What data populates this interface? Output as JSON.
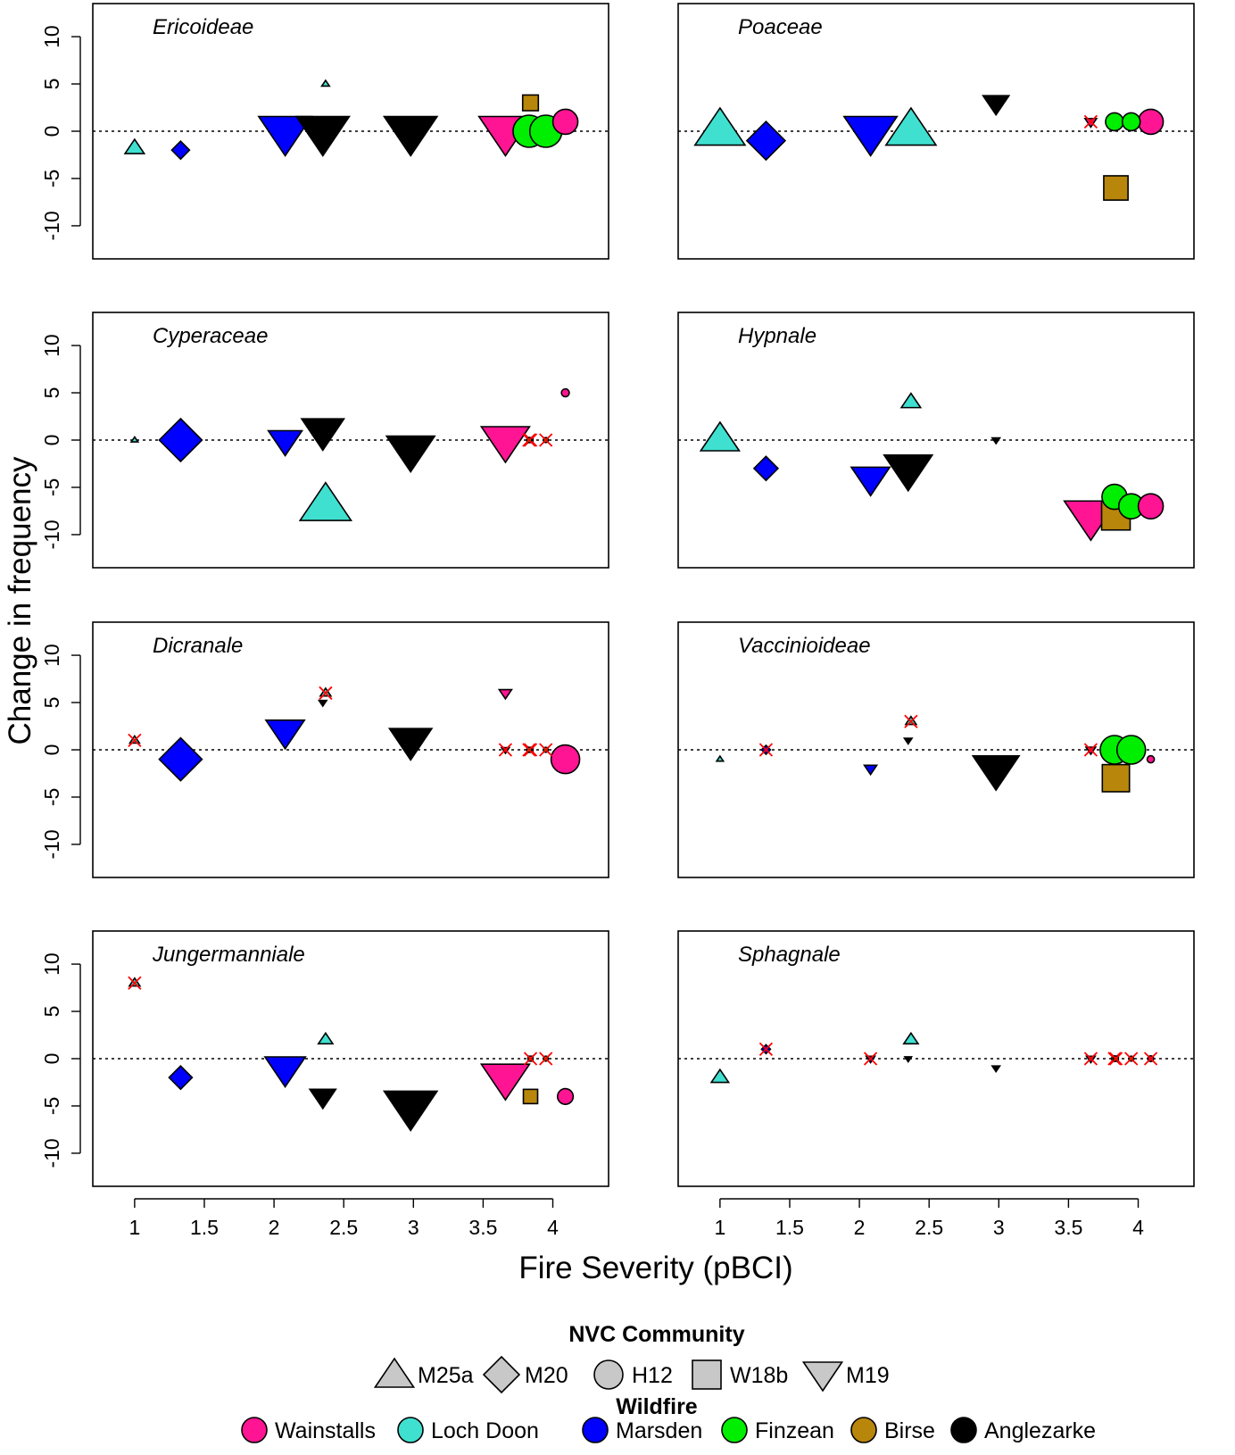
{
  "chart_data": {
    "type": "scatter",
    "xlabel": "Fire Severity (pBCI)",
    "ylabel": "Change in frequency",
    "xlim": [
      0.7,
      4.4
    ],
    "ylim": [
      -13.5,
      13.5
    ],
    "xticks": [
      "1",
      "1.5",
      "2",
      "2.5",
      "3",
      "3.5",
      "4"
    ],
    "xtick_values": [
      1,
      1.5,
      2,
      2.5,
      3,
      3.5,
      4
    ],
    "yticks": [
      "10",
      "5",
      "0",
      "-5",
      "-10"
    ],
    "ytick_values": [
      10,
      5,
      0,
      -5,
      -10
    ],
    "reference_line": 0,
    "legend": {
      "placement": "bottom",
      "community_title": "NVC Community",
      "community": [
        {
          "label": "M25a",
          "shape": "triangle-up"
        },
        {
          "label": "M20",
          "shape": "diamond"
        },
        {
          "label": "H12",
          "shape": "circle"
        },
        {
          "label": "W18b",
          "shape": "square"
        },
        {
          "label": "M19",
          "shape": "triangle-down"
        }
      ],
      "wildfire_title": "Wildfire",
      "wildfire": [
        {
          "label": "Wainstalls",
          "color": "#ff1493"
        },
        {
          "label": "Loch Doon",
          "color": "#40e0d0"
        },
        {
          "label": "Marsden",
          "color": "#0000ff"
        },
        {
          "label": "Finzean",
          "color": "#00ee00"
        },
        {
          "label": "Birse",
          "color": "#b8860b"
        },
        {
          "label": "Anglezarke",
          "color": "#000000"
        }
      ]
    },
    "panels": [
      {
        "title": "Ericoideae",
        "points": [
          {
            "x": 1.0,
            "y": -1.8,
            "shape": "triangle-up",
            "color": "#40e0d0",
            "size": 2
          },
          {
            "x": 1.33,
            "y": -2.0,
            "shape": "diamond",
            "color": "#0000ff",
            "size": 2
          },
          {
            "x": 2.37,
            "y": 5.0,
            "shape": "triangle-up",
            "color": "#40e0d0",
            "size": 0.8
          },
          {
            "x": 2.08,
            "y": 0.0,
            "shape": "triangle-down",
            "color": "#0000ff",
            "size": 5.5
          },
          {
            "x": 2.35,
            "y": 0.0,
            "shape": "triangle-down",
            "color": "#000000",
            "size": 5.5
          },
          {
            "x": 2.98,
            "y": 0.0,
            "shape": "triangle-down",
            "color": "#000000",
            "size": 5.5
          },
          {
            "x": 3.83,
            "y": 0.0,
            "shape": "circle",
            "color": "#00ee00",
            "size": 4.5
          },
          {
            "x": 3.95,
            "y": 0.0,
            "shape": "circle",
            "color": "#00ee00",
            "size": 4.5
          },
          {
            "x": 3.66,
            "y": 0.0,
            "shape": "triangle-down",
            "color": "#ff1493",
            "size": 5.5
          },
          {
            "x": 3.84,
            "y": 3.0,
            "shape": "square",
            "color": "#b8860b",
            "size": 2.2
          },
          {
            "x": 4.09,
            "y": 1.0,
            "shape": "circle",
            "color": "#ff1493",
            "size": 3.5
          }
        ]
      },
      {
        "title": "Poaceae",
        "points": [
          {
            "x": 1.0,
            "y": 0.0,
            "shape": "triangle-up",
            "color": "#40e0d0",
            "size": 5.2
          },
          {
            "x": 1.33,
            "y": -1.0,
            "shape": "diamond",
            "color": "#0000ff",
            "size": 4.3
          },
          {
            "x": 2.08,
            "y": 0.0,
            "shape": "triangle-down",
            "color": "#0000ff",
            "size": 5.5
          },
          {
            "x": 2.37,
            "y": 0.0,
            "shape": "triangle-up",
            "color": "#40e0d0",
            "size": 5.2
          },
          {
            "x": 2.98,
            "y": 3.0,
            "shape": "triangle-down",
            "color": "#000000",
            "size": 2.7
          },
          {
            "x": 3.66,
            "y": 1.0,
            "shape": "triangle-down",
            "color": "#ff1493",
            "size": 1.2,
            "crossed": true
          },
          {
            "x": 3.83,
            "y": 1.0,
            "shape": "circle",
            "color": "#00ee00",
            "size": 2.5
          },
          {
            "x": 3.95,
            "y": 1.0,
            "shape": "circle",
            "color": "#00ee00",
            "size": 2.5
          },
          {
            "x": 4.09,
            "y": 1.0,
            "shape": "circle",
            "color": "#ff1493",
            "size": 3.5
          },
          {
            "x": 3.84,
            "y": -6.0,
            "shape": "square",
            "color": "#b8860b",
            "size": 3.4
          }
        ]
      },
      {
        "title": "Cyperaceae",
        "points": [
          {
            "x": 1.0,
            "y": 0.0,
            "shape": "triangle-up",
            "color": "#40e0d0",
            "size": 0.7
          },
          {
            "x": 1.33,
            "y": 0.0,
            "shape": "diamond",
            "color": "#0000ff",
            "size": 4.8
          },
          {
            "x": 2.08,
            "y": 0.0,
            "shape": "triangle-down",
            "color": "#0000ff",
            "size": 3.5
          },
          {
            "x": 2.35,
            "y": 1.0,
            "shape": "triangle-down",
            "color": "#000000",
            "size": 4.4
          },
          {
            "x": 2.37,
            "y": -7.0,
            "shape": "triangle-up",
            "color": "#40e0d0",
            "size": 5.3
          },
          {
            "x": 2.98,
            "y": -1.0,
            "shape": "triangle-down",
            "color": "#000000",
            "size": 5.0
          },
          {
            "x": 3.66,
            "y": 0.0,
            "shape": "triangle-down",
            "color": "#ff1493",
            "size": 5.0
          },
          {
            "x": 3.84,
            "y": 0.0,
            "shape": "square",
            "color": "#b8860b",
            "size": 0.7,
            "crossed": true
          },
          {
            "x": 3.83,
            "y": 0.0,
            "shape": "circle",
            "color": "#00ee00",
            "size": 0.7,
            "crossed": true
          },
          {
            "x": 3.95,
            "y": 0.0,
            "shape": "circle",
            "color": "#00ee00",
            "size": 0.7,
            "crossed": true
          },
          {
            "x": 4.09,
            "y": 5.0,
            "shape": "circle",
            "color": "#ff1493",
            "size": 1.1
          }
        ]
      },
      {
        "title": "Hypnale",
        "points": [
          {
            "x": 1.0,
            "y": 0.0,
            "shape": "triangle-up",
            "color": "#40e0d0",
            "size": 4.0
          },
          {
            "x": 1.33,
            "y": -3.0,
            "shape": "diamond",
            "color": "#0000ff",
            "size": 2.7
          },
          {
            "x": 2.37,
            "y": 4.0,
            "shape": "triangle-up",
            "color": "#40e0d0",
            "size": 2.0
          },
          {
            "x": 2.08,
            "y": -4.0,
            "shape": "triangle-down",
            "color": "#0000ff",
            "size": 4.0
          },
          {
            "x": 2.35,
            "y": -3.0,
            "shape": "triangle-down",
            "color": "#000000",
            "size": 5.0
          },
          {
            "x": 2.98,
            "y": 0.0,
            "shape": "triangle-down",
            "color": "#000000",
            "size": 0.8
          },
          {
            "x": 3.83,
            "y": -6.0,
            "shape": "circle",
            "color": "#00ee00",
            "size": 3.5
          },
          {
            "x": 3.95,
            "y": -7.0,
            "shape": "circle",
            "color": "#00ee00",
            "size": 3.5
          },
          {
            "x": 4.09,
            "y": -7.0,
            "shape": "circle",
            "color": "#ff1493",
            "size": 3.5
          },
          {
            "x": 3.66,
            "y": -8.0,
            "shape": "triangle-down",
            "color": "#ff1493",
            "size": 5.5
          },
          {
            "x": 3.84,
            "y": -8.0,
            "shape": "square",
            "color": "#b8860b",
            "size": 4.0
          }
        ]
      },
      {
        "title": "Dicranale",
        "points": [
          {
            "x": 1.0,
            "y": 1.0,
            "shape": "triangle-up",
            "color": "#40e0d0",
            "size": 1.0,
            "crossed": true
          },
          {
            "x": 1.33,
            "y": -1.0,
            "shape": "diamond",
            "color": "#0000ff",
            "size": 4.8
          },
          {
            "x": 2.08,
            "y": 2.0,
            "shape": "triangle-down",
            "color": "#0000ff",
            "size": 4.0
          },
          {
            "x": 2.37,
            "y": 6.0,
            "shape": "triangle-up",
            "color": "#40e0d0",
            "size": 1.1,
            "crossed": true
          },
          {
            "x": 2.35,
            "y": 5.0,
            "shape": "triangle-down",
            "color": "#000000",
            "size": 0.8
          },
          {
            "x": 2.98,
            "y": 1.0,
            "shape": "triangle-down",
            "color": "#000000",
            "size": 4.4
          },
          {
            "x": 3.66,
            "y": 6.0,
            "shape": "triangle-down",
            "color": "#ff1493",
            "size": 1.3
          },
          {
            "x": 3.66,
            "y": 0.0,
            "shape": "triangle-down",
            "color": "#ff1493",
            "size": 0.8,
            "crossed": true
          },
          {
            "x": 3.84,
            "y": 0.0,
            "shape": "square",
            "color": "#b8860b",
            "size": 0.7,
            "crossed": true
          },
          {
            "x": 3.83,
            "y": 0.0,
            "shape": "circle",
            "color": "#00ee00",
            "size": 0.7,
            "crossed": true
          },
          {
            "x": 3.95,
            "y": 0.0,
            "shape": "circle",
            "color": "#00ee00",
            "size": 0.7,
            "crossed": true
          },
          {
            "x": 4.09,
            "y": -1.0,
            "shape": "circle",
            "color": "#ff1493",
            "size": 4.0
          }
        ]
      },
      {
        "title": "Vaccinioideae",
        "points": [
          {
            "x": 1.0,
            "y": -1.0,
            "shape": "triangle-up",
            "color": "#40e0d0",
            "size": 0.7
          },
          {
            "x": 1.33,
            "y": 0.0,
            "shape": "diamond",
            "color": "#0000ff",
            "size": 1.0,
            "crossed": true
          },
          {
            "x": 2.08,
            "y": -2.0,
            "shape": "triangle-down",
            "color": "#0000ff",
            "size": 1.3
          },
          {
            "x": 2.37,
            "y": 3.0,
            "shape": "triangle-up",
            "color": "#40e0d0",
            "size": 1.1,
            "crossed": true
          },
          {
            "x": 2.35,
            "y": 1.0,
            "shape": "triangle-down",
            "color": "#000000",
            "size": 0.8
          },
          {
            "x": 2.98,
            "y": -2.0,
            "shape": "triangle-down",
            "color": "#000000",
            "size": 4.8
          },
          {
            "x": 3.66,
            "y": 0.0,
            "shape": "triangle-down",
            "color": "#ff1493",
            "size": 1.0,
            "crossed": true
          },
          {
            "x": 3.83,
            "y": 0.0,
            "shape": "circle",
            "color": "#00ee00",
            "size": 4.0
          },
          {
            "x": 3.95,
            "y": 0.0,
            "shape": "circle",
            "color": "#00ee00",
            "size": 4.0
          },
          {
            "x": 3.84,
            "y": -3.0,
            "shape": "square",
            "color": "#b8860b",
            "size": 3.8
          },
          {
            "x": 4.09,
            "y": -1.0,
            "shape": "circle",
            "color": "#ff1493",
            "size": 1.0
          }
        ]
      },
      {
        "title": "Jungermanniale",
        "points": [
          {
            "x": 1.0,
            "y": 8.0,
            "shape": "triangle-up",
            "color": "#40e0d0",
            "size": 1.1,
            "crossed": true
          },
          {
            "x": 1.33,
            "y": -2.0,
            "shape": "diamond",
            "color": "#0000ff",
            "size": 2.6
          },
          {
            "x": 2.08,
            "y": -1.0,
            "shape": "triangle-down",
            "color": "#0000ff",
            "size": 4.2
          },
          {
            "x": 2.37,
            "y": 2.0,
            "shape": "triangle-up",
            "color": "#40e0d0",
            "size": 1.5
          },
          {
            "x": 2.35,
            "y": -4.0,
            "shape": "triangle-down",
            "color": "#000000",
            "size": 2.7
          },
          {
            "x": 2.98,
            "y": -5.0,
            "shape": "triangle-down",
            "color": "#000000",
            "size": 5.5
          },
          {
            "x": 3.66,
            "y": -2.0,
            "shape": "triangle-down",
            "color": "#ff1493",
            "size": 5.0
          },
          {
            "x": 3.84,
            "y": 0.0,
            "shape": "square",
            "color": "#b8860b",
            "size": 0.7,
            "crossed": true
          },
          {
            "x": 3.95,
            "y": 0.0,
            "shape": "circle",
            "color": "#00ee00",
            "size": 0.7,
            "crossed": true
          },
          {
            "x": 3.84,
            "y": -4.0,
            "shape": "square",
            "color": "#b8860b",
            "size": 2.0
          },
          {
            "x": 4.09,
            "y": -4.0,
            "shape": "circle",
            "color": "#ff1493",
            "size": 2.2
          }
        ]
      },
      {
        "title": "Sphagnale",
        "points": [
          {
            "x": 1.0,
            "y": -2.0,
            "shape": "triangle-up",
            "color": "#40e0d0",
            "size": 1.8
          },
          {
            "x": 1.33,
            "y": 1.0,
            "shape": "diamond",
            "color": "#0000ff",
            "size": 1.0,
            "crossed": true
          },
          {
            "x": 2.08,
            "y": 0.0,
            "shape": "triangle-down",
            "color": "#0000ff",
            "size": 0.9,
            "crossed": true
          },
          {
            "x": 2.37,
            "y": 2.0,
            "shape": "triangle-up",
            "color": "#40e0d0",
            "size": 1.5
          },
          {
            "x": 2.35,
            "y": 0.0,
            "shape": "triangle-down",
            "color": "#000000",
            "size": 0.7
          },
          {
            "x": 2.98,
            "y": -1.0,
            "shape": "triangle-down",
            "color": "#000000",
            "size": 0.8
          },
          {
            "x": 3.66,
            "y": 0.0,
            "shape": "triangle-down",
            "color": "#ff1493",
            "size": 0.9,
            "crossed": true
          },
          {
            "x": 3.83,
            "y": 0.0,
            "shape": "circle",
            "color": "#00ee00",
            "size": 0.8,
            "crossed": true
          },
          {
            "x": 3.84,
            "y": 0.0,
            "shape": "square",
            "color": "#b8860b",
            "size": 0.7,
            "crossed": true
          },
          {
            "x": 3.95,
            "y": 0.0,
            "shape": "circle",
            "color": "#00ee00",
            "size": 0.7,
            "crossed": true
          },
          {
            "x": 4.09,
            "y": 0.0,
            "shape": "circle",
            "color": "#ff1493",
            "size": 0.8,
            "crossed": true
          }
        ]
      }
    ]
  }
}
